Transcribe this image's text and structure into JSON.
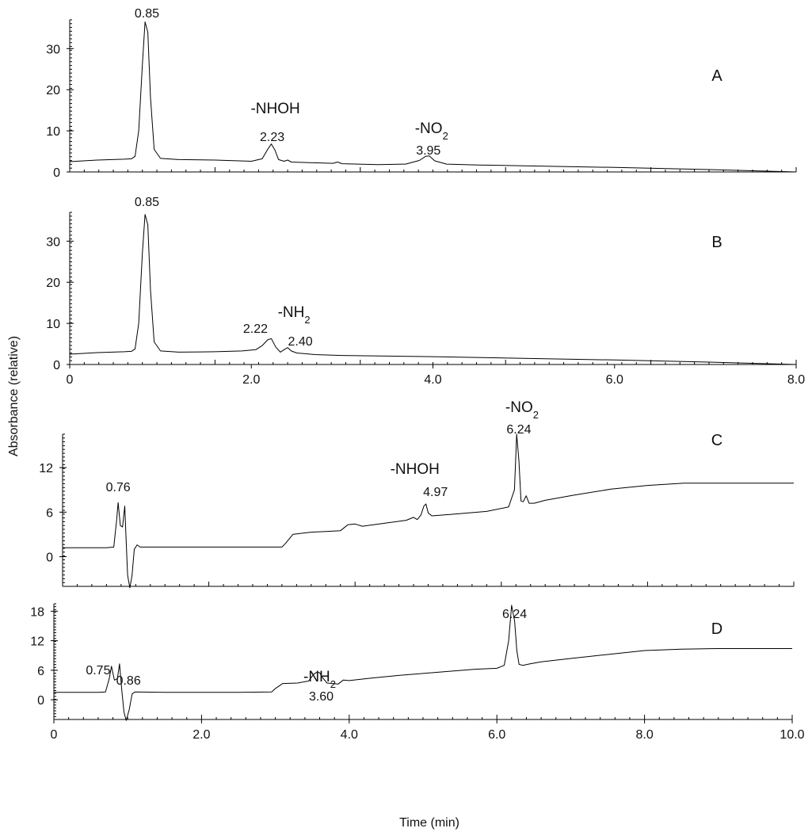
{
  "figure": {
    "ylabel": "Absorbance (relative)",
    "xlabel": "Time (min)"
  },
  "chart_data": [
    {
      "type": "line",
      "panel": "A",
      "xlim": [
        0,
        8.0
      ],
      "ylim": [
        0,
        37
      ],
      "y_ticks": [
        "0",
        "10",
        "20",
        "30"
      ],
      "annotations": [
        {
          "text": "0.85",
          "x": 0.85
        },
        {
          "text": "-NHOH",
          "x": 2.23
        },
        {
          "text": "2.23",
          "x": 2.23
        },
        {
          "text": "-NO",
          "sub": "2",
          "x": 3.95
        },
        {
          "text": "3.95",
          "x": 3.95
        }
      ],
      "series": [
        {
          "x": [
            0,
            0.3,
            0.6,
            0.68,
            0.72,
            0.76,
            0.8,
            0.83,
            0.86,
            0.89,
            0.93,
            1.0,
            1.2,
            1.6,
            2.0,
            2.12,
            2.18,
            2.22,
            2.26,
            2.3,
            2.36,
            2.4,
            2.44,
            2.6,
            2.9,
            2.95,
            3.0,
            3.4,
            3.7,
            3.85,
            3.92,
            3.96,
            4.02,
            4.15,
            4.5,
            5.0,
            6.0,
            7.0,
            8.0
          ],
          "y": [
            2.5,
            2.9,
            3.1,
            3.2,
            3.8,
            10,
            26,
            36.5,
            34,
            18,
            5.5,
            3.3,
            3.0,
            2.9,
            2.6,
            3.2,
            5.5,
            6.8,
            5.3,
            3.0,
            2.6,
            2.9,
            2.4,
            2.3,
            2.1,
            2.4,
            2.0,
            1.8,
            1.9,
            2.8,
            3.8,
            3.9,
            2.7,
            1.9,
            1.7,
            1.5,
            1.1,
            0.6,
            0
          ]
        }
      ]
    },
    {
      "type": "line",
      "panel": "B",
      "xlim": [
        0,
        8.0
      ],
      "ylim": [
        0,
        37
      ],
      "x_ticks": [
        "0",
        "2.0",
        "4.0",
        "6.0",
        "8.0"
      ],
      "y_ticks": [
        "0",
        "10",
        "20",
        "30"
      ],
      "annotations": [
        {
          "text": "0.85",
          "x": 0.85
        },
        {
          "text": "2.22",
          "x": 2.22
        },
        {
          "text": "-NH",
          "sub": "2",
          "x": 2.4
        },
        {
          "text": "2.40",
          "x": 2.4
        }
      ],
      "series": [
        {
          "x": [
            0,
            0.3,
            0.6,
            0.68,
            0.72,
            0.76,
            0.8,
            0.83,
            0.86,
            0.89,
            0.93,
            1.0,
            1.2,
            1.6,
            1.9,
            2.05,
            2.12,
            2.18,
            2.22,
            2.27,
            2.32,
            2.36,
            2.4,
            2.44,
            2.5,
            2.7,
            3.0,
            4.0,
            5.0,
            6.0,
            7.0,
            8.0
          ],
          "y": [
            2.5,
            2.9,
            3.1,
            3.2,
            3.8,
            10,
            27,
            36.5,
            34,
            18,
            5.5,
            3.3,
            3.0,
            3.1,
            3.3,
            3.6,
            4.6,
            6.0,
            6.3,
            4.2,
            3.0,
            3.6,
            4.1,
            3.3,
            2.8,
            2.4,
            2.2,
            1.9,
            1.5,
            1.1,
            0.6,
            0
          ]
        }
      ]
    },
    {
      "type": "line",
      "panel": "C",
      "xlim": [
        0,
        10.0
      ],
      "ylim": [
        -4,
        16.5
      ],
      "y_ticks": [
        "0",
        "6",
        "12"
      ],
      "annotations": [
        {
          "text": "0.76",
          "x": 0.76
        },
        {
          "text": "-NHOH",
          "x": 4.97
        },
        {
          "text": "4.97",
          "x": 4.97
        },
        {
          "text": "-NO",
          "sub": "2",
          "x": 6.24
        },
        {
          "text": "6.24",
          "x": 6.24
        }
      ],
      "series": [
        {
          "x": [
            0,
            0.6,
            0.7,
            0.74,
            0.76,
            0.79,
            0.82,
            0.85,
            0.87,
            0.89,
            0.92,
            0.95,
            0.98,
            1.02,
            1.06,
            1.1,
            1.5,
            2.0,
            2.5,
            3.0,
            3.05,
            3.15,
            3.4,
            3.6,
            3.8,
            3.9,
            4.0,
            4.1,
            4.4,
            4.7,
            4.8,
            4.85,
            4.9,
            4.94,
            4.97,
            5.0,
            5.05,
            5.3,
            5.8,
            6.1,
            6.18,
            6.21,
            6.24,
            6.27,
            6.3,
            6.34,
            6.38,
            6.45,
            6.6,
            7.0,
            7.5,
            8.0,
            8.5,
            9.0,
            9.5,
            10.0
          ],
          "y": [
            1.2,
            1.2,
            1.3,
            5,
            7.3,
            4.2,
            4.0,
            6.8,
            2.0,
            -2.5,
            -4.2,
            -2.5,
            1.0,
            1.6,
            1.3,
            1.3,
            1.3,
            1.3,
            1.3,
            1.3,
            1.8,
            3.0,
            3.3,
            3.4,
            3.5,
            4.3,
            4.4,
            4.1,
            4.5,
            4.9,
            5.3,
            5.0,
            5.6,
            6.8,
            7.1,
            5.9,
            5.5,
            5.7,
            6.1,
            6.7,
            9,
            16.5,
            13,
            7.5,
            7.4,
            8.2,
            7.2,
            7.2,
            7.6,
            8.3,
            9.1,
            9.6,
            9.9,
            9.9,
            9.9,
            9.9
          ]
        }
      ]
    },
    {
      "type": "line",
      "panel": "D",
      "xlim": [
        0,
        10.0
      ],
      "ylim": [
        -4,
        19.5
      ],
      "x_ticks": [
        "0",
        "2.0",
        "4.0",
        "6.0",
        "8.0",
        "10.0"
      ],
      "y_ticks": [
        "0",
        "6",
        "12",
        "18"
      ],
      "annotations": [
        {
          "text": "0.75",
          "x": 0.75
        },
        {
          "text": "0.86",
          "x": 0.86
        },
        {
          "text": "-NH",
          "sub": "2",
          "x": 3.6
        },
        {
          "text": "3.60",
          "x": 3.6
        },
        {
          "text": "6.24",
          "x": 6.24
        }
      ],
      "series": [
        {
          "x": [
            0,
            0.6,
            0.7,
            0.75,
            0.78,
            0.82,
            0.86,
            0.89,
            0.92,
            0.95,
            0.98,
            1.02,
            1.06,
            1.1,
            1.5,
            2.0,
            2.5,
            2.95,
            3.0,
            3.1,
            3.3,
            3.45,
            3.52,
            3.56,
            3.6,
            3.64,
            3.7,
            3.85,
            3.92,
            4.0,
            4.3,
            4.7,
            5.2,
            5.7,
            6.0,
            6.1,
            6.16,
            6.2,
            6.24,
            6.27,
            6.3,
            6.35,
            6.45,
            6.6,
            7.0,
            7.5,
            8.0,
            8.5,
            9.0,
            9.5,
            10.0
          ],
          "y": [
            1.5,
            1.5,
            1.6,
            4.3,
            6.8,
            4.0,
            4.3,
            7.3,
            2.0,
            -2.5,
            -4.2,
            -2.0,
            1.2,
            1.6,
            1.5,
            1.5,
            1.5,
            1.6,
            2.3,
            3.3,
            3.4,
            3.8,
            5.2,
            5.6,
            5.5,
            4.5,
            3.4,
            3.2,
            4.0,
            3.9,
            4.4,
            5.0,
            5.6,
            6.2,
            6.4,
            7.0,
            12,
            19.2,
            16,
            10,
            7.2,
            7.0,
            7.3,
            7.7,
            8.4,
            9.2,
            10.0,
            10.3,
            10.4,
            10.4,
            10.4
          ]
        }
      ]
    }
  ]
}
